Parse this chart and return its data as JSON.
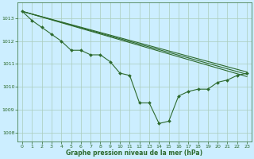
{
  "bg_color": "#cceeff",
  "grid_color": "#aaccbb",
  "line_color": "#2d6a2d",
  "marker_color": "#2d6a2d",
  "xlabel": "Graphe pression niveau de la mer (hPa)",
  "xlabel_color": "#2d6a2d",
  "tick_color": "#2d6a2d",
  "ylim": [
    1007.6,
    1013.7
  ],
  "xlim": [
    -0.5,
    23.5
  ],
  "yticks": [
    1008,
    1009,
    1010,
    1011,
    1012,
    1013
  ],
  "xticks": [
    0,
    1,
    2,
    3,
    4,
    5,
    6,
    7,
    8,
    9,
    10,
    11,
    12,
    13,
    14,
    15,
    16,
    17,
    18,
    19,
    20,
    21,
    22,
    23
  ],
  "line1_x": [
    0,
    1,
    2,
    3,
    4,
    5,
    6,
    7,
    8,
    9,
    10,
    11,
    12,
    13,
    14,
    15,
    16,
    17,
    18,
    19,
    20,
    21,
    22,
    23
  ],
  "line1_y": [
    1013.3,
    1012.9,
    1012.6,
    1012.3,
    1012.0,
    1011.6,
    1011.6,
    1011.4,
    1011.4,
    1011.1,
    1010.6,
    1010.5,
    1009.3,
    1009.3,
    1008.4,
    1008.5,
    1009.6,
    1009.8,
    1009.9,
    1009.9,
    1010.2,
    1010.3,
    1010.5,
    1010.6
  ],
  "line2_x": [
    0,
    23
  ],
  "line2_y": [
    1013.3,
    1010.65
  ],
  "line3_x": [
    0,
    23
  ],
  "line3_y": [
    1013.3,
    1010.55
  ],
  "line4_x": [
    0,
    23
  ],
  "line4_y": [
    1013.3,
    1010.45
  ],
  "figsize": [
    3.2,
    2.0
  ],
  "dpi": 100
}
